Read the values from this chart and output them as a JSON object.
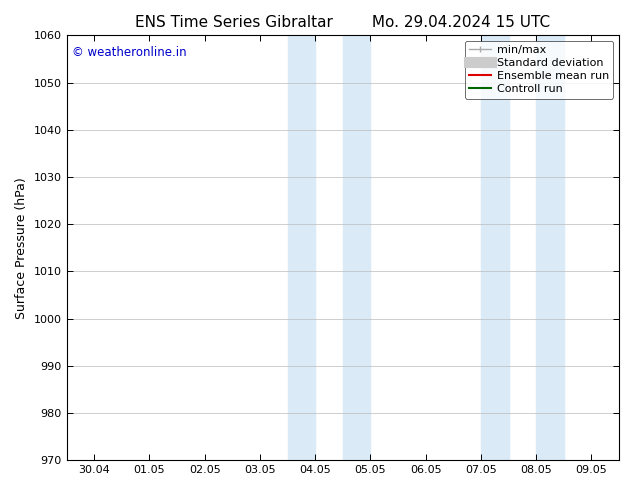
{
  "title_left": "ENS Time Series Gibraltar",
  "title_right": "Mo. 29.04.2024 15 UTC",
  "ylabel": "Surface Pressure (hPa)",
  "ylim": [
    970,
    1060
  ],
  "yticks": [
    970,
    980,
    990,
    1000,
    1010,
    1020,
    1030,
    1040,
    1050,
    1060
  ],
  "xtick_labels": [
    "30.04",
    "01.05",
    "02.05",
    "03.05",
    "04.05",
    "05.05",
    "06.05",
    "07.05",
    "08.05",
    "09.05"
  ],
  "shaded_regions": [
    {
      "xstart": 4.0,
      "xend": 4.5
    },
    {
      "xstart": 5.0,
      "xend": 5.5
    },
    {
      "xstart": 7.5,
      "xend": 8.0
    },
    {
      "xstart": 8.5,
      "xend": 9.0
    }
  ],
  "shaded_color": "#daeaf7",
  "watermark": "© weatheronline.in",
  "watermark_color": "#0000cc",
  "legend_entries": [
    {
      "label": "min/max",
      "color": "#aaaaaa",
      "lw": 1.0,
      "style": "minmax"
    },
    {
      "label": "Standard deviation",
      "color": "#cccccc",
      "lw": 8,
      "style": "band"
    },
    {
      "label": "Ensemble mean run",
      "color": "#dd0000",
      "lw": 1.5,
      "style": "line"
    },
    {
      "label": "Controll run",
      "color": "#006600",
      "lw": 1.5,
      "style": "line"
    }
  ],
  "background_color": "#ffffff",
  "grid_color": "#bbbbbb",
  "title_fontsize": 11,
  "axis_fontsize": 9,
  "tick_fontsize": 8,
  "legend_fontsize": 8
}
